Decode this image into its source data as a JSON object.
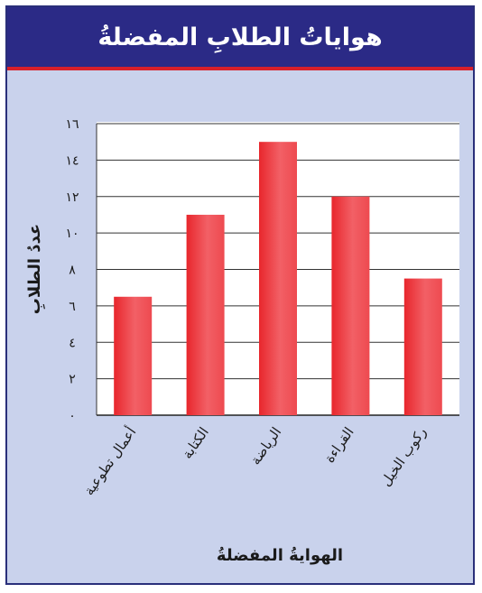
{
  "chart_data": {
    "type": "bar",
    "title": "هواياتُ الطلابِ المفضلةُ",
    "xlabel": "الهوايةُ المفضلةُ",
    "ylabel": "عددُ الطلابِ",
    "categories": [
      "أعمال تطوعية",
      "الكتابة",
      "الرياضة",
      "القراءة",
      "ركوب الخيل"
    ],
    "values": [
      6.5,
      11,
      15,
      12,
      7.5
    ],
    "yticks": [
      "٠",
      "٢",
      "٤",
      "٦",
      "٨",
      "١٠",
      "١٢",
      "١٤",
      "١٦"
    ],
    "ylim": [
      0,
      16
    ],
    "grid": true,
    "colors": {
      "bar": "#e8262c",
      "bar_light": "#f57a7f",
      "header_bg": "#2b2a86",
      "header_border": "#d8202a",
      "panel_bg": "#c9d2ec",
      "plot_bg": "#ffffff"
    }
  }
}
